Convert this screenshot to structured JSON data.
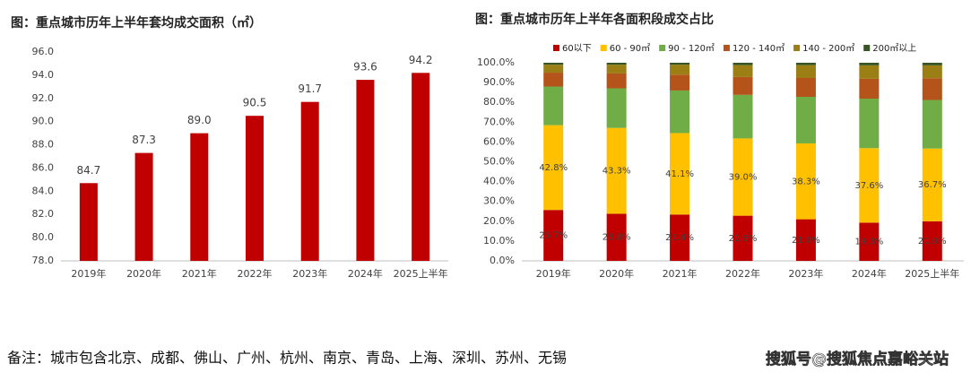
{
  "chart_data": [
    {
      "type": "bar",
      "title": "图：重点城市历年上半年套均成交面积（㎡）",
      "categories": [
        "2019年",
        "2020年",
        "2021年",
        "2022年",
        "2023年",
        "2024年",
        "2025上半年"
      ],
      "values": [
        84.7,
        87.3,
        89.0,
        90.5,
        91.7,
        93.6,
        94.2
      ],
      "value_labels": [
        "84.7",
        "87.3",
        "89.0",
        "90.5",
        "91.7",
        "93.6",
        "94.2"
      ],
      "color": "#c00000",
      "ylim": [
        78,
        96
      ],
      "yticks": [
        {
          "value": 78,
          "label": "78.0"
        },
        {
          "value": 80,
          "label": "80.0"
        },
        {
          "value": 82,
          "label": "82.0"
        },
        {
          "value": 84,
          "label": "84.0"
        },
        {
          "value": 86,
          "label": "86.0"
        },
        {
          "value": 88,
          "label": "88.0"
        },
        {
          "value": 90,
          "label": "90.0"
        },
        {
          "value": 92,
          "label": "92.0"
        },
        {
          "value": 94,
          "label": "94.0"
        },
        {
          "value": 96,
          "label": "96.0"
        }
      ]
    },
    {
      "type": "stacked_bar",
      "title": "图：重点城市历年上半年各面积段成交占比",
      "categories": [
        "2019年",
        "2020年",
        "2021年",
        "2022年",
        "2023年",
        "2024年",
        "2025上半年"
      ],
      "series": [
        {
          "name": "60以下",
          "color": "#c00000",
          "values": [
            25.7,
            23.8,
            23.4,
            22.8,
            21.0,
            19.3,
            20.0
          ],
          "value_labels": [
            "25.7%",
            "23.8%",
            "23.4%",
            "22.8%",
            "21.0%",
            "19.3%",
            "20.0%"
          ]
        },
        {
          "name": "60 - 90㎡",
          "color": "#ffc000",
          "values": [
            42.8,
            43.3,
            41.1,
            39.0,
            38.3,
            37.6,
            36.7
          ],
          "value_labels": [
            "42.8%",
            "43.3%",
            "41.1%",
            "39.0%",
            "38.3%",
            "37.6%",
            "36.7%"
          ]
        },
        {
          "name": "90 - 120㎡",
          "color": "#70ad47",
          "values": [
            19.5,
            20.0,
            21.5,
            22.0,
            23.5,
            25.0,
            24.5
          ]
        },
        {
          "name": "120 - 140㎡",
          "color": "#b4531a",
          "values": [
            7.0,
            7.5,
            8.0,
            9.0,
            9.5,
            10.0,
            11.0
          ]
        },
        {
          "name": "140 - 200㎡",
          "color": "#9c7f14",
          "values": [
            4.0,
            4.4,
            5.0,
            6.0,
            6.5,
            6.8,
            6.5
          ]
        },
        {
          "name": "200㎡以上",
          "color": "#375623",
          "values": [
            1.0,
            1.0,
            1.0,
            1.2,
            1.2,
            1.3,
            1.3
          ]
        }
      ],
      "ylim": [
        0,
        100
      ],
      "yticks": [
        {
          "value": 0,
          "label": "0.0%"
        },
        {
          "value": 10,
          "label": "10.0%"
        },
        {
          "value": 20,
          "label": "20.0%"
        },
        {
          "value": 30,
          "label": "30.0%"
        },
        {
          "value": 40,
          "label": "40.0%"
        },
        {
          "value": 50,
          "label": "50.0%"
        },
        {
          "value": 60,
          "label": "60.0%"
        },
        {
          "value": 70,
          "label": "70.0%"
        },
        {
          "value": 80,
          "label": "80.0%"
        },
        {
          "value": 90,
          "label": "90.0%"
        },
        {
          "value": 100,
          "label": "100.0%"
        }
      ]
    }
  ],
  "note": "备注：城市包含北京、成都、佛山、广州、杭州、南京、青岛、上海、深圳、苏州、无锡",
  "watermark": "搜狐号@搜狐焦点嘉峪关站"
}
